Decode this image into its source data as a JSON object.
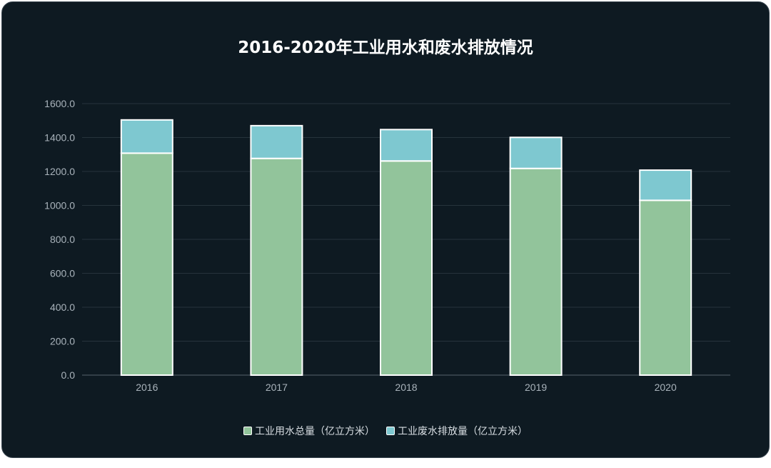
{
  "chart_data": {
    "type": "bar",
    "stacked": true,
    "title": "2016-2020年工业用水和废水排放情况",
    "categories": [
      "2016",
      "2017",
      "2018",
      "2019",
      "2020"
    ],
    "series": [
      {
        "name": "工业用水总量（亿立方米）",
        "values": [
          1308.0,
          1277.0,
          1262.0,
          1218.0,
          1030.0
        ],
        "color": "#92c49b"
      },
      {
        "name": "工业废水排放量（亿立方米）",
        "values": [
          196.0,
          193.0,
          185.0,
          183.0,
          178.0
        ],
        "color": "#7ec8d0"
      }
    ],
    "ylim": [
      0,
      1600
    ],
    "yticks": [
      "0.0",
      "200.0",
      "400.0",
      "600.0",
      "800.0",
      "1000.0",
      "1200.0",
      "1400.0",
      "1600.0"
    ],
    "grid": true,
    "legend_position": "bottom"
  }
}
